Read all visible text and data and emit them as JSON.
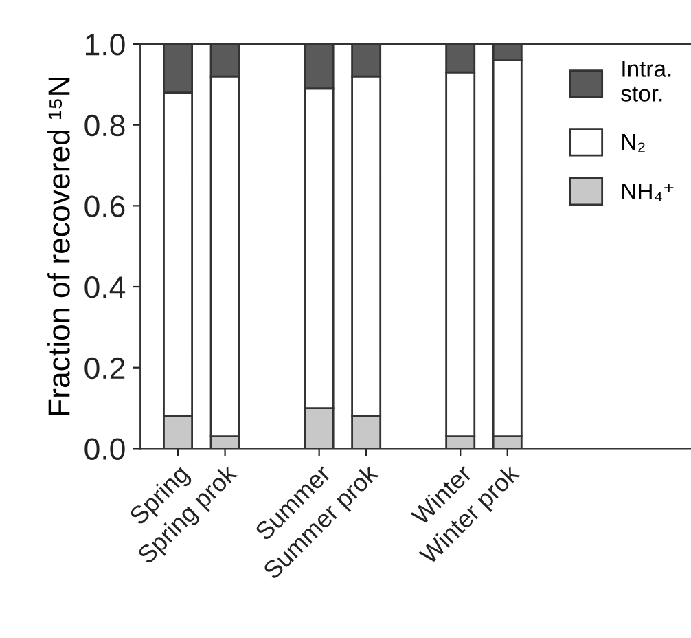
{
  "chart_data": {
    "type": "bar",
    "stacked": true,
    "ylabel": "Fraction of recovered ¹⁵N",
    "categories": [
      "Spring",
      "Spring prok",
      null,
      "Summer",
      "Summer prok",
      null,
      "Winter",
      "Winter prok"
    ],
    "series": [
      {
        "name": "NH₄⁺",
        "color": "#c8c8c8",
        "values": [
          0.08,
          0.03,
          null,
          0.1,
          0.08,
          null,
          0.03,
          0.03
        ]
      },
      {
        "name": "N₂",
        "color": "#ffffff",
        "values": [
          0.8,
          0.89,
          null,
          0.79,
          0.84,
          null,
          0.9,
          0.93
        ]
      },
      {
        "name": "Intra.\nstor.",
        "color": "#5a5a5a",
        "values": [
          0.12,
          0.08,
          null,
          0.11,
          0.08,
          null,
          0.07,
          0.04
        ]
      }
    ],
    "ylim": [
      0,
      1
    ],
    "yticks": [
      {
        "value": 0,
        "label": "0.0"
      },
      {
        "value": 0.2,
        "label": "0.2"
      },
      {
        "value": 0.4,
        "label": "0.4"
      },
      {
        "value": 0.6,
        "label": "0.6"
      },
      {
        "value": 0.8,
        "label": "0.8"
      },
      {
        "value": 1,
        "label": "1.0"
      }
    ],
    "grid": false,
    "legend": "top right"
  }
}
